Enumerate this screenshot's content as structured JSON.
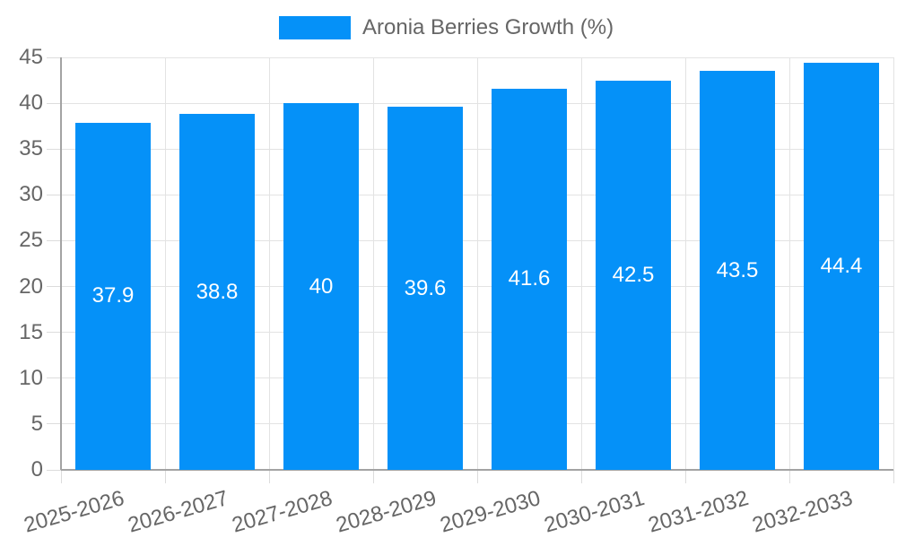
{
  "legend": {
    "label": "Aronia Berries Growth (%)"
  },
  "chart_data": {
    "type": "bar",
    "title": "Aronia Berries Growth (%)",
    "categories": [
      "2025-2026",
      "2026-2027",
      "2027-2028",
      "2028-2029",
      "2029-2030",
      "2030-2031",
      "2031-2032",
      "2032-2033"
    ],
    "series": [
      {
        "name": "Aronia Berries Growth (%)",
        "values": [
          37.9,
          38.8,
          40,
          39.6,
          41.6,
          42.5,
          43.5,
          44.4
        ]
      }
    ],
    "value_labels": [
      "37.9",
      "38.8",
      "40",
      "39.6",
      "41.6",
      "42.5",
      "43.5",
      "44.4"
    ],
    "xlabel": "",
    "ylabel": "",
    "ylim": [
      0,
      45
    ],
    "yticks": [
      0,
      5,
      10,
      15,
      20,
      25,
      30,
      35,
      40,
      45
    ],
    "grid": true,
    "legend_position": "top",
    "colors": {
      "bar": "#0591f8",
      "value_label": "#ffffff",
      "axis_text": "#666666",
      "grid": "#e3e3e3",
      "tick": "#dcdcdc",
      "axis_line": "#a3a3a3",
      "background": "#ffffff"
    }
  }
}
